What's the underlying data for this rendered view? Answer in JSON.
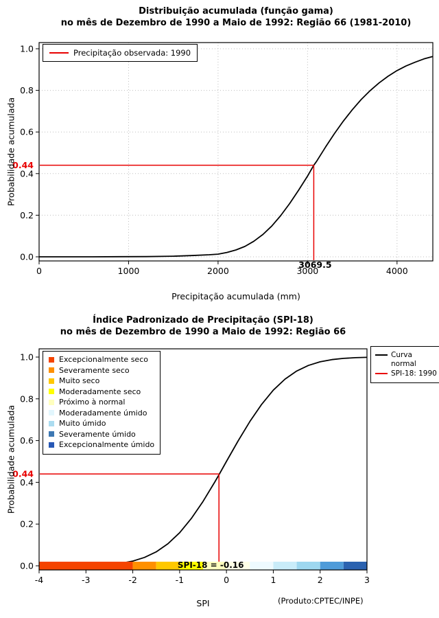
{
  "chart_data": [
    {
      "id": "gamma-cdf",
      "type": "line",
      "title": "Distribuição acumulada (função gama)",
      "subtitle": "no mês de Dezembro de 1990 a Maio de 1992: Região 66 (1981-2010)",
      "xlabel": "Precipitação acumulada (mm)",
      "ylabel": "Probabilidade acumulada",
      "xlim": [
        0,
        4400
      ],
      "ylim": [
        0,
        1
      ],
      "xticks": [
        0,
        1000,
        2000,
        3000,
        4000
      ],
      "xtick_labels": [
        "0",
        "1000",
        "2000",
        "3000",
        "4000"
      ],
      "yticks": [
        0,
        0.2,
        0.4,
        0.6,
        0.8,
        1
      ],
      "ytick_labels": [
        "0.0",
        "0.2",
        "0.4",
        "0.6",
        "0.8",
        "1.0"
      ],
      "grid": true,
      "series": [
        {
          "name": "gamma-cdf-curve",
          "color": "#000000",
          "points": [
            [
              0,
              0
            ],
            [
              300,
              0
            ],
            [
              600,
              0
            ],
            [
              900,
              0.0005
            ],
            [
              1200,
              0.001
            ],
            [
              1500,
              0.003
            ],
            [
              1700,
              0.006
            ],
            [
              1900,
              0.01
            ],
            [
              2000,
              0.013
            ],
            [
              2100,
              0.021
            ],
            [
              2200,
              0.033
            ],
            [
              2300,
              0.05
            ],
            [
              2400,
              0.075
            ],
            [
              2500,
              0.107
            ],
            [
              2600,
              0.148
            ],
            [
              2700,
              0.198
            ],
            [
              2800,
              0.256
            ],
            [
              2900,
              0.32
            ],
            [
              3000,
              0.388
            ],
            [
              3069.5,
              0.44
            ],
            [
              3100,
              0.458
            ],
            [
              3200,
              0.527
            ],
            [
              3300,
              0.592
            ],
            [
              3400,
              0.652
            ],
            [
              3500,
              0.707
            ],
            [
              3600,
              0.756
            ],
            [
              3700,
              0.799
            ],
            [
              3800,
              0.836
            ],
            [
              3900,
              0.868
            ],
            [
              4000,
              0.895
            ],
            [
              4100,
              0.917
            ],
            [
              4200,
              0.935
            ],
            [
              4300,
              0.951
            ],
            [
              4400,
              0.963
            ]
          ]
        }
      ],
      "reference": {
        "x": 3069.5,
        "y": 0.44,
        "color": "#e80000",
        "x_label": "3069.5",
        "y_label": "0.44"
      },
      "legend": [
        {
          "label": "Precipitação observada: 1990",
          "color": "#e80000",
          "type": "line"
        }
      ]
    },
    {
      "id": "spi-normal-cdf",
      "type": "line",
      "title": "Índice Padronizado de Precipitação (SPI-18)",
      "subtitle": "no mês de Dezembro de 1990 a Maio de 1992: Região 66",
      "xlabel": "SPI",
      "ylabel": "Probabilidade acumulada",
      "xlim": [
        -4,
        3
      ],
      "ylim": [
        0,
        1
      ],
      "xticks": [
        -4,
        -3,
        -2,
        -1,
        0,
        1,
        2,
        3
      ],
      "xtick_labels": [
        "-4",
        "-3",
        "-2",
        "-1",
        "0",
        "1",
        "2",
        "3"
      ],
      "yticks": [
        0,
        0.2,
        0.4,
        0.6,
        0.8,
        1
      ],
      "ytick_labels": [
        "0.0",
        "0.2",
        "0.4",
        "0.6",
        "0.8",
        "1.0"
      ],
      "grid": false,
      "series": [
        {
          "name": "normal-cdf-curve",
          "color": "#000000",
          "points": [
            [
              -4,
              3e-05
            ],
            [
              -3.75,
              0.0001
            ],
            [
              -3.5,
              0.0002
            ],
            [
              -3.25,
              0.0006
            ],
            [
              -3,
              0.0013
            ],
            [
              -2.75,
              0.003
            ],
            [
              -2.5,
              0.0062
            ],
            [
              -2.25,
              0.0122
            ],
            [
              -2,
              0.0228
            ],
            [
              -1.75,
              0.0401
            ],
            [
              -1.5,
              0.0668
            ],
            [
              -1.25,
              0.1056
            ],
            [
              -1,
              0.1587
            ],
            [
              -0.75,
              0.2266
            ],
            [
              -0.5,
              0.3085
            ],
            [
              -0.25,
              0.4013
            ],
            [
              -0.16,
              0.436
            ],
            [
              0,
              0.5
            ],
            [
              0.25,
              0.5987
            ],
            [
              0.5,
              0.6915
            ],
            [
              0.75,
              0.7734
            ],
            [
              1,
              0.8413
            ],
            [
              1.25,
              0.8944
            ],
            [
              1.5,
              0.9332
            ],
            [
              1.75,
              0.9599
            ],
            [
              2,
              0.9772
            ],
            [
              2.25,
              0.9878
            ],
            [
              2.5,
              0.9938
            ],
            [
              2.75,
              0.997
            ],
            [
              3,
              0.9987
            ]
          ]
        }
      ],
      "reference": {
        "x": -0.16,
        "y": 0.44,
        "color": "#e80000",
        "y_label": "0.44",
        "annotation": "SPI-18 = -0.16"
      },
      "category_legend": [
        {
          "label": "Excepcionalmente seco",
          "color": "#f54400"
        },
        {
          "label": "Severamente seco",
          "color": "#ff9000"
        },
        {
          "label": "Muito seco",
          "color": "#ffc800"
        },
        {
          "label": "Moderadamente seco",
          "color": "#ffff00"
        },
        {
          "label": "Próximo à normal",
          "color": "#ffffbe"
        },
        {
          "label": "Moderadamente úmido",
          "color": "#e2f6fd"
        },
        {
          "label": "Muito úmido",
          "color": "#abdcf0"
        },
        {
          "label": "Severamente úmido",
          "color": "#3d78b3"
        },
        {
          "label": "Excepcionalmente úmido",
          "color": "#2758b5"
        }
      ],
      "curve_legend": [
        {
          "name": "normal-curve-legend",
          "label_lines": [
            "Curva",
            "normal"
          ],
          "color": "#000000"
        },
        {
          "name": "spi-legend",
          "label_lines": [
            "SPI-18: 1990"
          ],
          "color": "#e80000"
        }
      ],
      "colorbar": {
        "segments": [
          {
            "from": -4,
            "to": -2,
            "color": "#f54400"
          },
          {
            "from": -2,
            "to": -1.5,
            "color": "#ff9000"
          },
          {
            "from": -1.5,
            "to": -1,
            "color": "#ffc800"
          },
          {
            "from": -1,
            "to": -0.5,
            "color": "#ffff00"
          },
          {
            "from": -0.5,
            "to": 0,
            "color": "#ffffbe"
          },
          {
            "from": 0,
            "to": 0.5,
            "color": "#ffffe6"
          },
          {
            "from": 0.5,
            "to": 1,
            "color": "#eefaff"
          },
          {
            "from": 1,
            "to": 1.5,
            "color": "#c9ecf9"
          },
          {
            "from": 1.5,
            "to": 2,
            "color": "#9ed7ef"
          },
          {
            "from": 2,
            "to": 2.5,
            "color": "#4f9bd9"
          },
          {
            "from": 2.5,
            "to": 3,
            "color": "#2b62b0"
          }
        ]
      },
      "credit": "(Produto:CPTEC/INPE)"
    }
  ]
}
